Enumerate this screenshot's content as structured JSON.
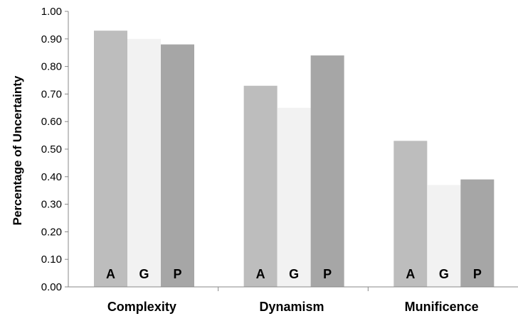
{
  "chart_data": {
    "type": "bar",
    "title": "",
    "xlabel": "",
    "ylabel": "Percentage of Uncertainty",
    "ylim": [
      0,
      1.0
    ],
    "yticks": [
      "0.00",
      "0.10",
      "0.20",
      "0.30",
      "0.40",
      "0.50",
      "0.60",
      "0.70",
      "0.80",
      "0.90",
      "1.00"
    ],
    "categories": [
      "Complexity",
      "Dynamism",
      "Munificence"
    ],
    "grid": false,
    "legend": "none",
    "series": [
      {
        "label": "A",
        "color": "#bdbdbd",
        "values": [
          0.93,
          0.73,
          0.53
        ]
      },
      {
        "label": "G",
        "color": "#f2f2f2",
        "values": [
          0.9,
          0.65,
          0.37
        ]
      },
      {
        "label": "P",
        "color": "#a6a6a6",
        "values": [
          0.88,
          0.84,
          0.39
        ]
      }
    ]
  }
}
